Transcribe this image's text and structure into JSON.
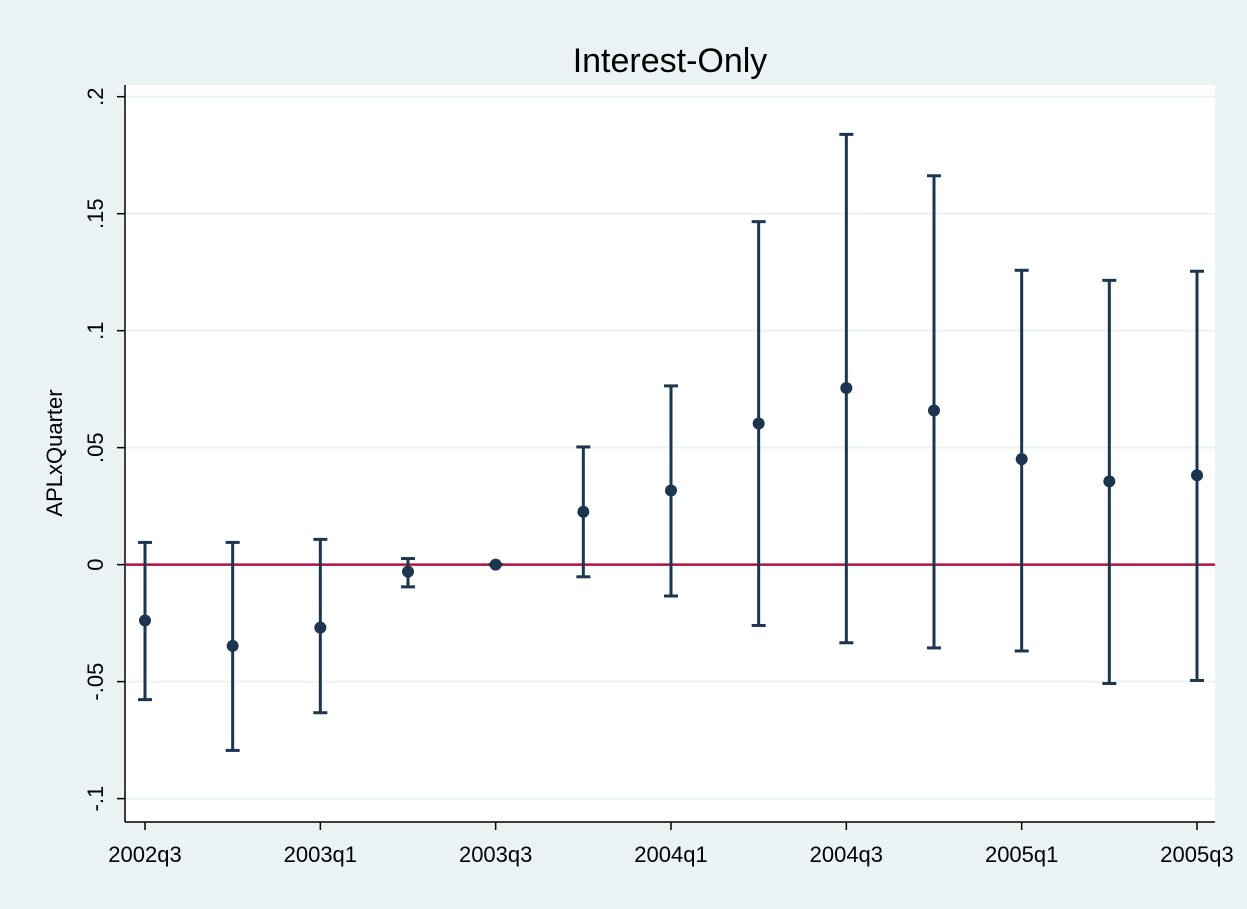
{
  "chart_data": {
    "type": "errorbar",
    "title": "Interest-Only",
    "y_label": "APLxQuarter",
    "categories": [
      "2002q3",
      null,
      "2003q1",
      null,
      "2003q3",
      null,
      "2004q1",
      null,
      "2004q3",
      null,
      "2005q1",
      null,
      "2005q3"
    ],
    "values": [
      -0.0239,
      -0.0347,
      -0.0269,
      -0.003,
      0,
      0.0226,
      0.0317,
      0.0603,
      0.0755,
      0.0659,
      0.0451,
      0.0356,
      0.0382
    ],
    "lower": [
      -0.0577,
      -0.0794,
      -0.0633,
      -0.0095,
      0,
      -0.0052,
      -0.0134,
      -0.026,
      -0.0334,
      -0.0356,
      -0.0369,
      -0.0508,
      -0.0495
    ],
    "upper": [
      0.0095,
      0.0095,
      0.0108,
      0.0026,
      0,
      0.0503,
      0.0764,
      0.1466,
      0.1839,
      0.1662,
      0.1258,
      0.1215,
      0.1254
    ],
    "color": "#1a3651",
    "reference_line": {
      "value": 0,
      "color": "#b5103c"
    },
    "ylim": [
      -0.11,
      0.205
    ],
    "yticks": [
      {
        "value": -0.1,
        "label": "-.1"
      },
      {
        "value": -0.05,
        "label": "-.05"
      },
      0,
      {
        "value": 0.05,
        "label": ".05"
      },
      {
        "value": 0.1,
        "label": ".1"
      },
      {
        "value": 0.15,
        "label": ".15"
      },
      {
        "value": 0.2,
        "label": ".2"
      }
    ],
    "grid": true
  }
}
